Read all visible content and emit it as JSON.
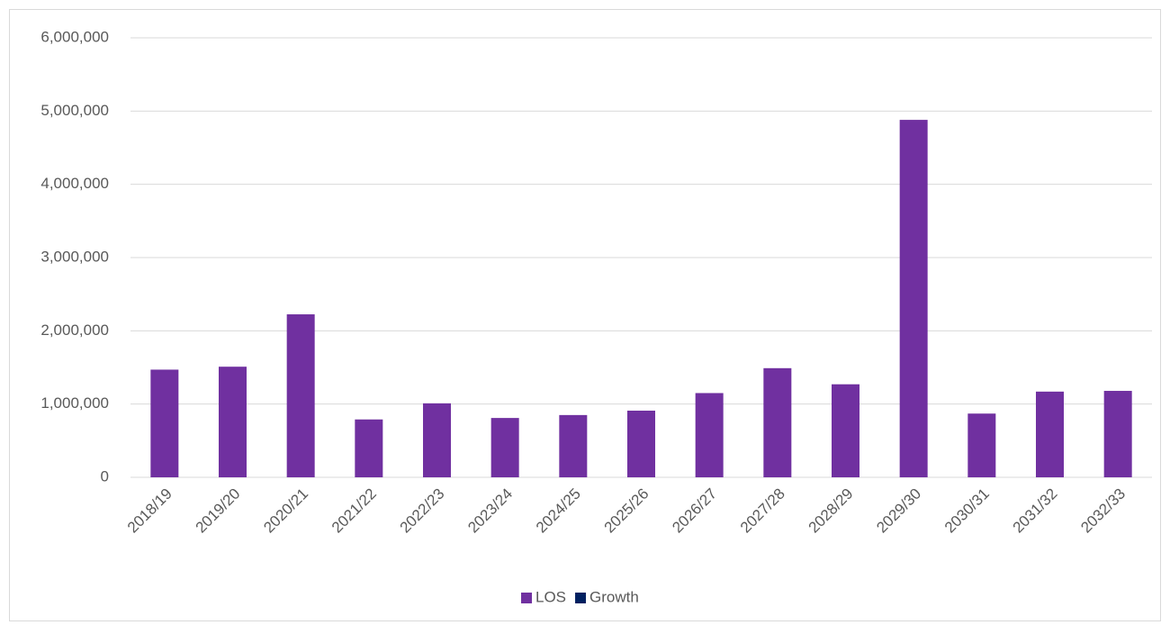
{
  "chart_data": {
    "type": "bar",
    "categories": [
      "2018/19",
      "2019/20",
      "2020/21",
      "2021/22",
      "2022/23",
      "2023/24",
      "2024/25",
      "2025/26",
      "2026/27",
      "2027/28",
      "2028/29",
      "2029/30",
      "2030/31",
      "2031/32",
      "2032/33"
    ],
    "series": [
      {
        "name": "LOS",
        "color": "#7030a0",
        "values": [
          1470000,
          1510000,
          2225000,
          790000,
          1010000,
          810000,
          850000,
          910000,
          1150000,
          1490000,
          1270000,
          4880000,
          870000,
          1170000,
          1180000
        ]
      },
      {
        "name": "Growth",
        "color": "#002060",
        "values": [
          null,
          null,
          null,
          null,
          null,
          null,
          null,
          null,
          null,
          null,
          null,
          null,
          null,
          null,
          null
        ]
      }
    ],
    "ylim": [
      0,
      6000000
    ],
    "yticks": [
      0,
      {
        "value": 1000000,
        "label": "1,000,000"
      },
      {
        "value": 2000000,
        "label": "2,000,000"
      },
      {
        "value": 3000000,
        "label": "3,000,000"
      },
      {
        "value": 4000000,
        "label": "4,000,000"
      },
      {
        "value": 5000000,
        "label": "5,000,000"
      },
      {
        "value": 6000000,
        "label": "6,000,000"
      }
    ],
    "grid": true,
    "legend": "bottom"
  }
}
